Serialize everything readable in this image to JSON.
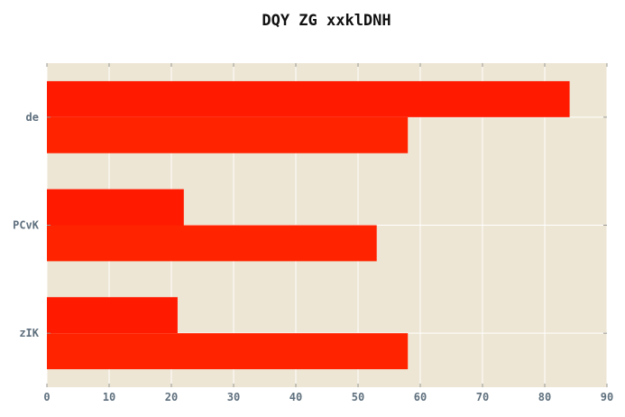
{
  "chart_data": {
    "type": "bar",
    "orientation": "horizontal",
    "title": "DQY ZG xxklDNH",
    "xlabel": "",
    "ylabel": "",
    "categories": [
      "de",
      "PCvK",
      "zIK"
    ],
    "series": [
      {
        "name": "series-1",
        "values": [
          84,
          22,
          21
        ],
        "color": "#ff1a00"
      },
      {
        "name": "series-2",
        "values": [
          58,
          53,
          58
        ],
        "color": "#ff2300"
      }
    ],
    "xlim": [
      0,
      90
    ],
    "xticks": [
      0,
      10,
      20,
      30,
      40,
      50,
      60,
      70,
      80,
      90
    ],
    "grid": true,
    "legend": "none",
    "colors": {
      "plot_background": "#ede6d4",
      "grid": "#ffffff",
      "tick_label": "#5f707e",
      "title": "#111111"
    }
  }
}
